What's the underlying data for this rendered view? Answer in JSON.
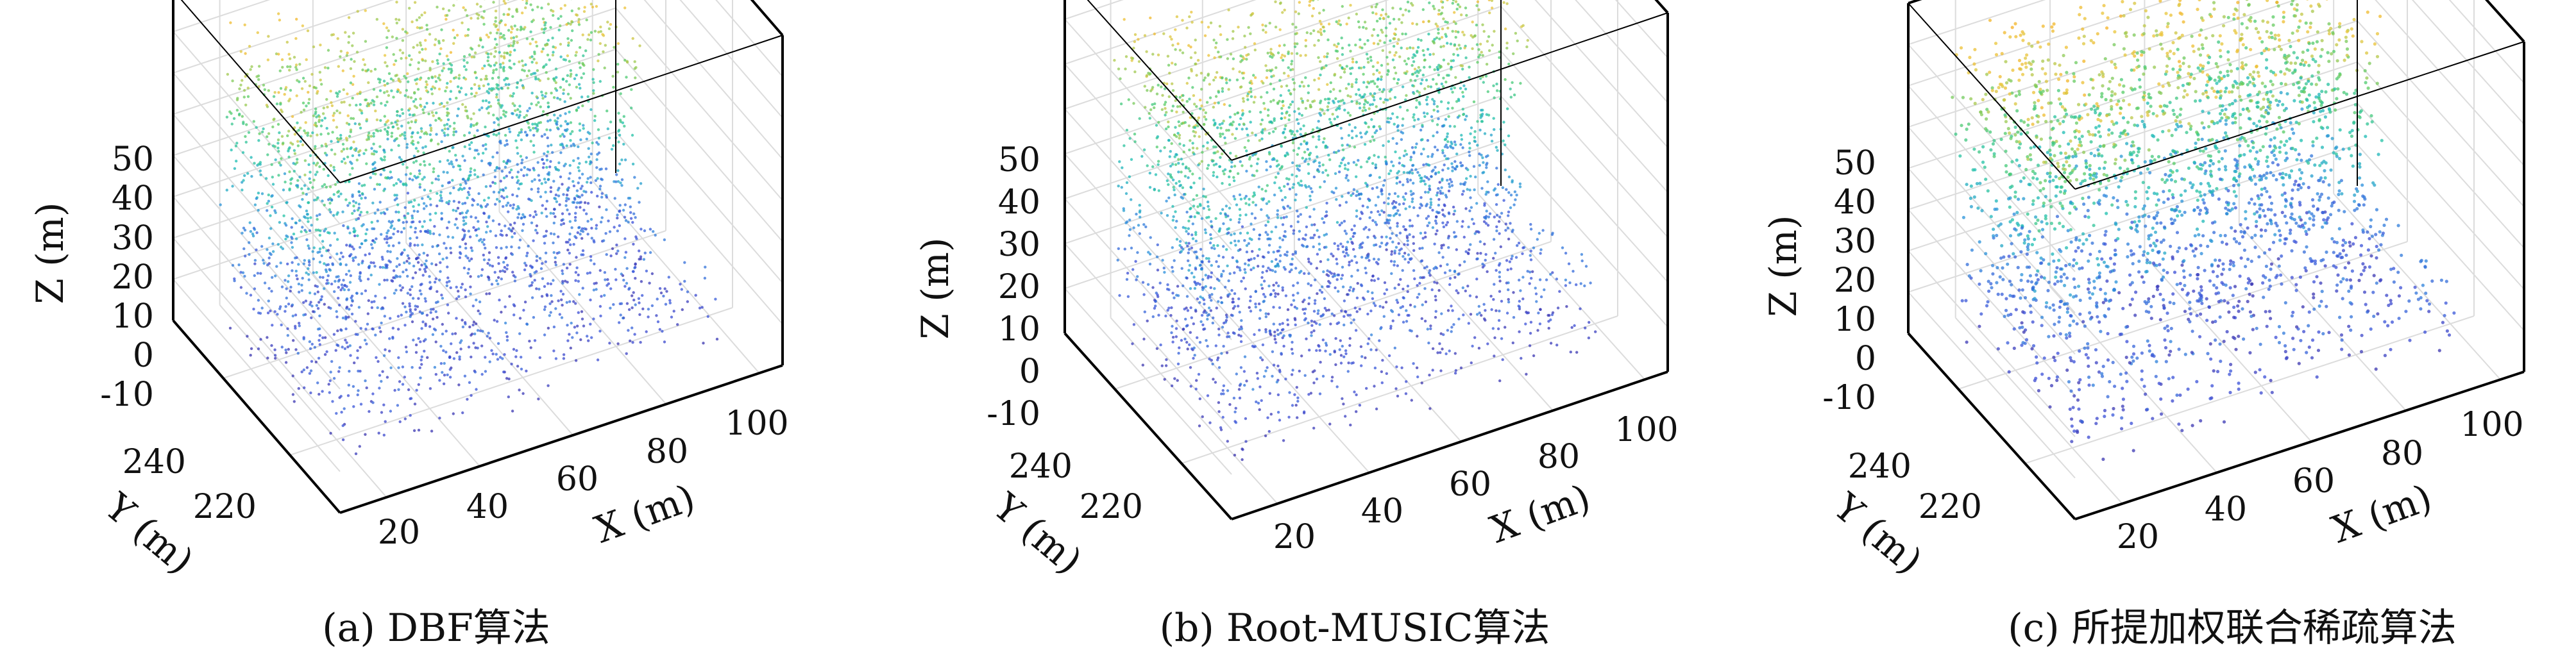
{
  "chart_data": [
    {
      "type": "scatter3d",
      "caption": "(a) DBF算法",
      "xlabel": "X (m)",
      "ylabel": "Y (m)",
      "zlabel": "Z (m)",
      "x_ticks": [
        "20",
        "40",
        "60",
        "80",
        "100"
      ],
      "y_ticks": [
        "220",
        "240"
      ],
      "z_ticks": [
        "-10",
        "0",
        "10",
        "20",
        "30",
        "40",
        "50"
      ],
      "xlim": [
        10,
        105
      ],
      "ylim": [
        205,
        255
      ],
      "zlim": [
        -20,
        60
      ],
      "grid": true,
      "colormap": [
        "#3b1f8c",
        "#3b4fd8",
        "#2a8fdc",
        "#1cbfb0",
        "#55cc66",
        "#e9c53a",
        "#f9a91c"
      ],
      "points_per_chart": 3200
    },
    {
      "type": "scatter3d",
      "caption": "(b) Root-MUSIC算法",
      "xlabel": "X (m)",
      "ylabel": "Y (m)",
      "zlabel": "Z (m)",
      "x_ticks": [
        "20",
        "40",
        "60",
        "80",
        "100"
      ],
      "y_ticks": [
        "220",
        "240"
      ],
      "z_ticks": [
        "-10",
        "0",
        "10",
        "20",
        "30",
        "40",
        "50"
      ],
      "xlim": [
        10,
        105
      ],
      "ylim": [
        205,
        255
      ],
      "zlim": [
        -20,
        60
      ],
      "grid": true,
      "colormap": [
        "#3b1f8c",
        "#3b4fd8",
        "#2a8fdc",
        "#1cbfb0",
        "#55cc66",
        "#e9c53a",
        "#f9a91c"
      ],
      "points_per_chart": 3200
    },
    {
      "type": "scatter3d",
      "caption": "(c) 所提加权联合稀疏算法",
      "xlabel": "X (m)",
      "ylabel": "Y (m)",
      "zlabel": "Z (m)",
      "x_ticks": [
        "20",
        "40",
        "60",
        "80",
        "100"
      ],
      "y_ticks": [
        "220",
        "240"
      ],
      "z_ticks": [
        "-10",
        "0",
        "10",
        "20",
        "30",
        "40",
        "50"
      ],
      "xlim": [
        10,
        105
      ],
      "ylim": [
        205,
        255
      ],
      "zlim": [
        -20,
        60
      ],
      "grid": true,
      "colormap": [
        "#3b1f8c",
        "#3b4fd8",
        "#2a8fdc",
        "#1cbfb0",
        "#55cc66",
        "#e9c53a",
        "#f9a91c"
      ],
      "points_per_chart": 2600
    }
  ]
}
